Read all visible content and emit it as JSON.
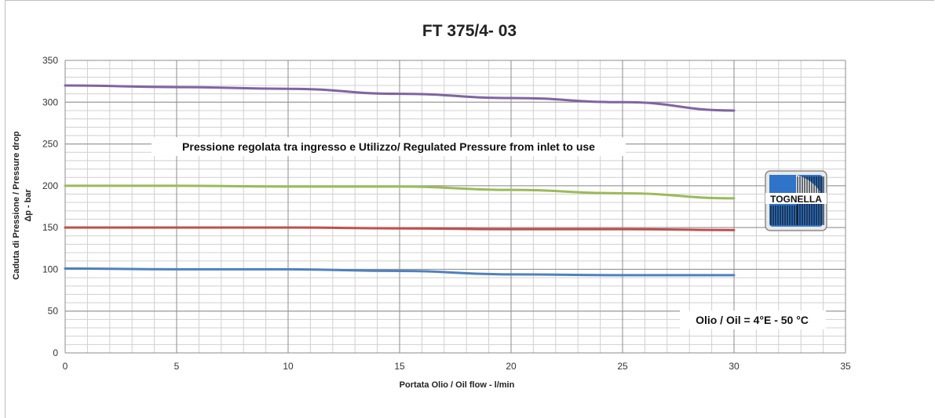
{
  "chart_data": {
    "type": "line",
    "title": "FT 375/4- 03",
    "xlabel": "Portata Olio / Oil flow -  l/min",
    "ylabel_line1": "Caduta di Pressione / Pressure drop",
    "ylabel_line2": "Δp - bar",
    "xlim": [
      0,
      35
    ],
    "ylim": [
      0,
      350
    ],
    "x_ticks": [
      0,
      5,
      10,
      15,
      20,
      25,
      30,
      35
    ],
    "y_ticks": [
      0,
      50,
      100,
      150,
      200,
      250,
      300,
      350
    ],
    "grid": true,
    "legend": "none",
    "series": [
      {
        "color": "#8064a2",
        "x": [
          0,
          5,
          10,
          15,
          20,
          25,
          30
        ],
        "values": [
          320,
          318,
          316,
          310,
          305,
          300,
          290
        ]
      },
      {
        "color": "#9bbb59",
        "x": [
          0,
          5,
          10,
          15,
          20,
          25,
          30
        ],
        "values": [
          200,
          200,
          199,
          199,
          195,
          191,
          185
        ]
      },
      {
        "color": "#c0504d",
        "x": [
          0,
          5,
          10,
          15,
          20,
          25,
          30
        ],
        "values": [
          150,
          150,
          150,
          149,
          148,
          148,
          147
        ]
      },
      {
        "color": "#4f81bd",
        "x": [
          0,
          5,
          10,
          15,
          20,
          25,
          30
        ],
        "values": [
          101,
          100,
          100,
          98,
          94,
          93,
          93
        ]
      }
    ],
    "annotations": [
      {
        "text": "Pressione regolata tra ingresso e Utilizzo/ Regulated Pressure from inlet to use"
      },
      {
        "text": "Olio / Oil = 4°E - 50 °C"
      }
    ]
  },
  "logo": {
    "text": "TOGNELLA"
  }
}
